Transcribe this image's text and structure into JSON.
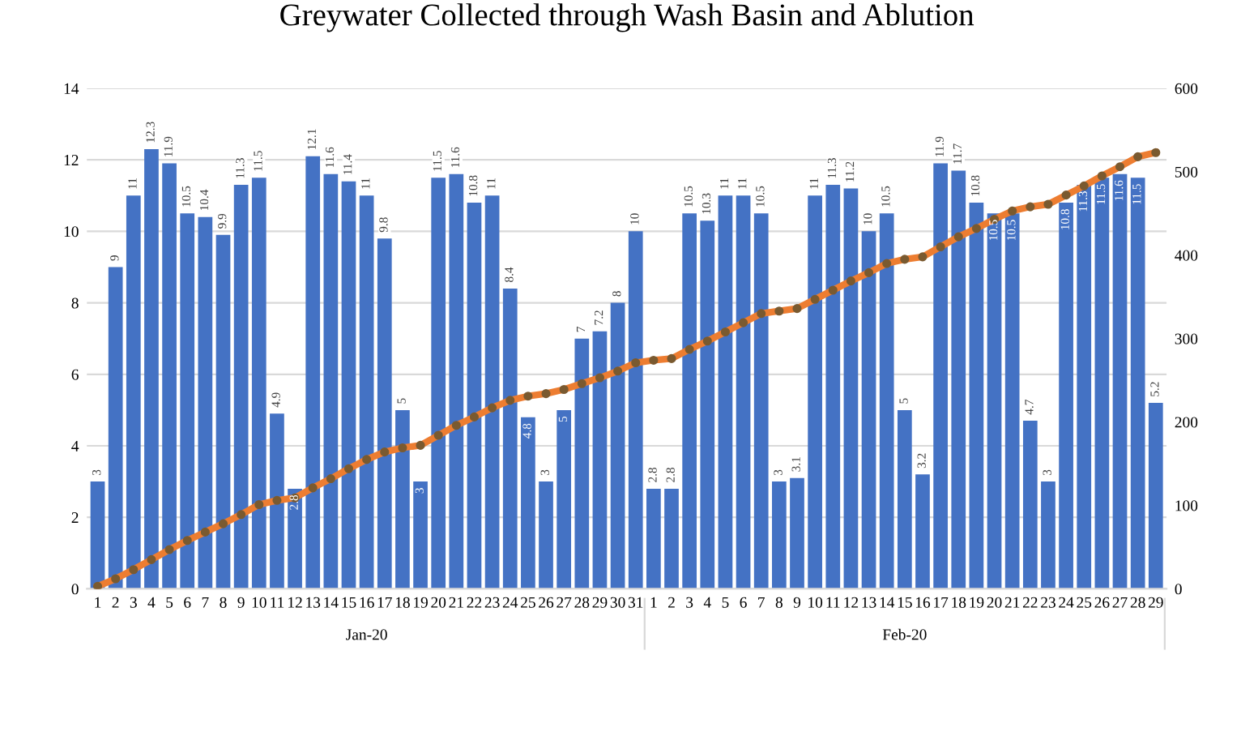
{
  "chart_data": {
    "type": "bar",
    "title": "Greywater Collected through Wash Basin and Ablution",
    "categories": [
      "1",
      "2",
      "3",
      "4",
      "5",
      "6",
      "7",
      "8",
      "9",
      "10",
      "11",
      "12",
      "13",
      "14",
      "15",
      "16",
      "17",
      "18",
      "19",
      "20",
      "21",
      "22",
      "23",
      "24",
      "25",
      "26",
      "27",
      "28",
      "29",
      "30",
      "31",
      "1",
      "2",
      "3",
      "4",
      "5",
      "6",
      "7",
      "8",
      "9",
      "10",
      "11",
      "12",
      "13",
      "14",
      "15",
      "16",
      "17",
      "18",
      "19",
      "20",
      "21",
      "22",
      "23",
      "24",
      "25",
      "26",
      "27",
      "28",
      "29"
    ],
    "series": [
      {
        "color": "#4472c4",
        "value_labels": [
          "3",
          "9",
          "11",
          "12.3",
          "11.9",
          "10.5",
          "10.4",
          "9.9",
          "11.3",
          "11.5",
          "4.9",
          "2.8",
          "12.1",
          "11.6",
          "11.4",
          "11",
          "9.8",
          "5",
          "3",
          "11.5",
          "11.6",
          "10.8",
          "11",
          "8.4",
          "4.8",
          "3",
          "5",
          "7",
          "7.2",
          "8",
          "10",
          "2.8",
          "2.8",
          "10.5",
          "10.3",
          "11",
          "11",
          "10.5",
          "3",
          "3.1",
          "11",
          "11.3",
          "11.2",
          "10",
          "10.5",
          "5",
          "3.2",
          "11.9",
          "11.7",
          "10.8",
          "10.5",
          "10.5",
          "4.7",
          "3",
          "10.8",
          "11.3",
          "11.5",
          "11.6",
          "11.5",
          "5.2"
        ],
        "values": [
          3.0,
          9.0,
          11.0,
          12.3,
          11.9,
          10.5,
          10.4,
          9.9,
          11.3,
          11.5,
          4.9,
          2.8,
          12.1,
          11.6,
          11.4,
          11.0,
          9.8,
          5.0,
          3.0,
          11.5,
          11.6,
          10.8,
          11.0,
          8.4,
          4.8,
          3.0,
          5.0,
          7.0,
          7.2,
          8.0,
          10.0,
          2.8,
          2.8,
          10.5,
          10.3,
          11.0,
          11.0,
          10.5,
          3.0,
          3.1,
          11.0,
          11.3,
          11.2,
          10.0,
          10.5,
          5.0,
          3.2,
          11.9,
          11.7,
          10.8,
          10.5,
          10.5,
          4.7,
          3.0,
          10.8,
          11.3,
          11.5,
          11.6,
          11.5,
          5.2
        ]
      },
      {
        "type": "line",
        "axis": "y2",
        "color": "#ed7d31",
        "marker": "circle",
        "values": [
          3,
          12,
          23,
          35,
          47,
          58,
          68,
          78,
          89,
          101,
          106,
          109,
          121,
          132,
          144,
          155,
          164,
          169,
          172,
          184,
          196,
          206,
          217,
          226,
          231,
          234,
          239,
          246,
          253,
          261,
          271,
          274,
          276,
          287,
          297,
          308,
          319,
          330,
          333,
          336,
          347,
          358,
          369,
          379,
          390,
          395,
          398,
          410,
          422,
          432,
          443,
          453,
          458,
          461,
          472,
          483,
          495,
          506,
          518,
          523
        ]
      }
    ],
    "ylim": [
      0,
      14
    ],
    "yticks": [
      0,
      2,
      4,
      6,
      8,
      10,
      12,
      14
    ],
    "y2lim": [
      0,
      600
    ],
    "y2ticks": [
      0,
      100,
      200,
      300,
      400,
      500,
      600
    ],
    "grid": "y",
    "annotations": [
      "Jan-20",
      "Feb-20"
    ]
  }
}
